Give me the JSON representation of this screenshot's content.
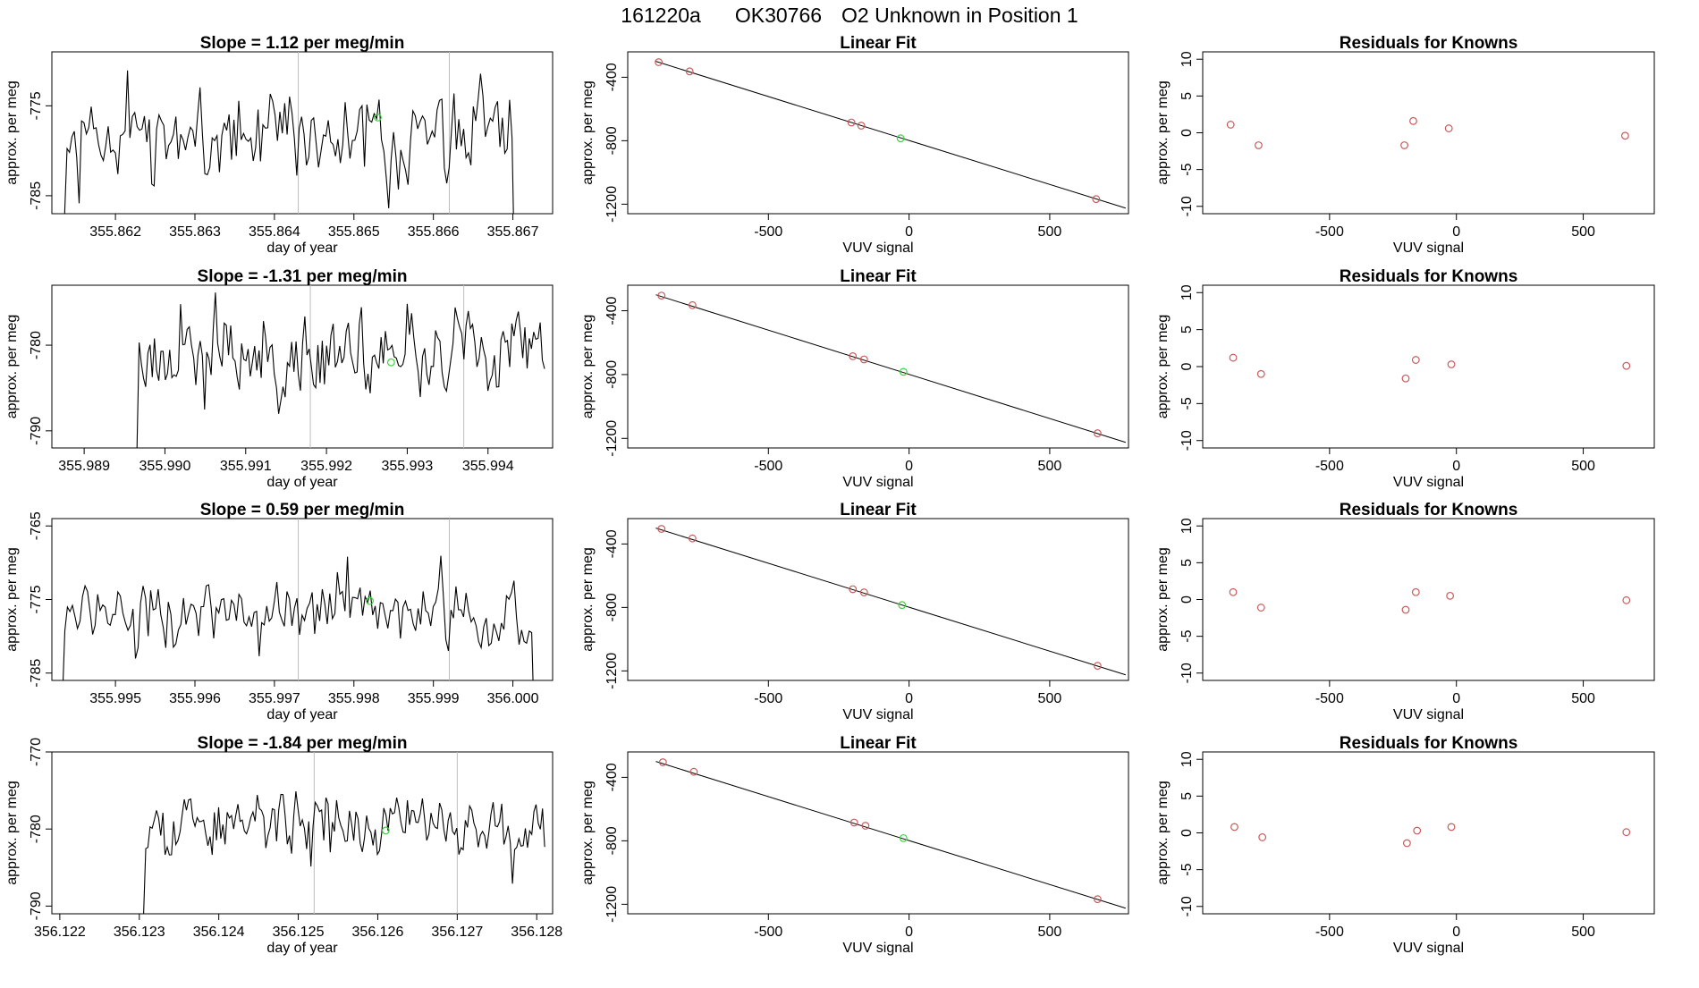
{
  "title": {
    "run": "161220a",
    "tank": "OK30766",
    "desc": "O2 Unknown in Position  1"
  },
  "chart_data": [
    {
      "type": "line",
      "title": "Slope =  1.12  per meg/min",
      "xlabel": "day of year",
      "ylabel": "approx. per meg",
      "xlim": [
        355.8612,
        355.8675
      ],
      "ylim": [
        -787,
        -769
      ],
      "xticks": [
        "355.862",
        "355.863",
        "355.864",
        "355.865",
        "355.866",
        "355.867"
      ],
      "yticks": [
        "-775",
        "-785"
      ],
      "vlines": [
        355.8643,
        355.8662
      ],
      "marker": {
        "x": 355.8653,
        "y": -776.3
      },
      "series": {
        "start": 355.8613,
        "end": 355.86705,
        "base": -778.5,
        "amp": 4,
        "seed": 11,
        "dropStart": 3,
        "dropEnd": 2
      }
    },
    {
      "type": "scatter",
      "title": "Linear Fit",
      "xlabel": "VUV signal",
      "ylabel": "approx. per meg",
      "xlim": [
        -1000,
        780
      ],
      "ylim": [
        -1260,
        -240
      ],
      "xticks": [
        "-500",
        "0",
        "500"
      ],
      "yticks": [
        "-400",
        "-800",
        "-1200"
      ],
      "fit": {
        "x": [
          -900,
          770
        ],
        "y": [
          -300,
          -1225
        ]
      },
      "points": [
        {
          "x": -890,
          "y": -305
        },
        {
          "x": -780,
          "y": -363
        },
        {
          "x": -205,
          "y": -685
        },
        {
          "x": -170,
          "y": -705
        },
        {
          "x": 665,
          "y": -1168
        }
      ],
      "unknown": [
        {
          "x": -30,
          "y": -785
        }
      ]
    },
    {
      "type": "scatter",
      "title": "Residuals for Knowns",
      "xlabel": "VUV signal",
      "ylabel": "approx. per meg",
      "xlim": [
        -1000,
        780
      ],
      "ylim": [
        -11,
        11
      ],
      "xticks": [
        "-500",
        "0",
        "500"
      ],
      "yticks": [
        "10",
        "5",
        "0",
        "-5",
        "-10"
      ],
      "points": [
        {
          "x": -890,
          "y": 1.1
        },
        {
          "x": -780,
          "y": -1.7
        },
        {
          "x": -205,
          "y": -1.7
        },
        {
          "x": -170,
          "y": 1.6
        },
        {
          "x": -30,
          "y": 0.6
        },
        {
          "x": 665,
          "y": -0.4
        }
      ]
    },
    {
      "type": "line",
      "title": "Slope =  -1.31  per meg/min",
      "xlabel": "day of year",
      "ylabel": "approx. per meg",
      "xlim": [
        355.9886,
        355.9948
      ],
      "ylim": [
        -792,
        -773
      ],
      "xticks": [
        "355.989",
        "355.990",
        "355.991",
        "355.992",
        "355.993",
        "355.994"
      ],
      "yticks": [
        "-780",
        "-790"
      ],
      "vlines": [
        355.9918,
        355.9937
      ],
      "marker": {
        "x": 355.9928,
        "y": -782
      },
      "series": {
        "start": 355.9896,
        "end": 355.9947,
        "base": -781,
        "amp": 4,
        "seed": 23,
        "dropStart": 3,
        "dropEnd": 0
      }
    },
    {
      "type": "scatter",
      "title": "Linear Fit",
      "xlabel": "VUV signal",
      "ylabel": "approx. per meg",
      "xlim": [
        -1000,
        780
      ],
      "ylim": [
        -1260,
        -240
      ],
      "xticks": [
        "-500",
        "0",
        "500"
      ],
      "yticks": [
        "-400",
        "-800",
        "-1200"
      ],
      "fit": {
        "x": [
          -900,
          770
        ],
        "y": [
          -300,
          -1225
        ]
      },
      "points": [
        {
          "x": -880,
          "y": -305
        },
        {
          "x": -770,
          "y": -365
        },
        {
          "x": -200,
          "y": -685
        },
        {
          "x": -160,
          "y": -705
        },
        {
          "x": 670,
          "y": -1168
        }
      ],
      "unknown": [
        {
          "x": -20,
          "y": -783
        }
      ]
    },
    {
      "type": "scatter",
      "title": "Residuals for Knowns",
      "xlabel": "VUV signal",
      "ylabel": "approx. per meg",
      "xlim": [
        -1000,
        780
      ],
      "ylim": [
        -11,
        11
      ],
      "xticks": [
        "-500",
        "0",
        "500"
      ],
      "yticks": [
        "10",
        "5",
        "0",
        "-5",
        "-10"
      ],
      "points": [
        {
          "x": -880,
          "y": 1.2
        },
        {
          "x": -770,
          "y": -1.0
        },
        {
          "x": -200,
          "y": -1.6
        },
        {
          "x": -160,
          "y": 0.9
        },
        {
          "x": -20,
          "y": 0.3
        },
        {
          "x": 670,
          "y": 0.1
        }
      ]
    },
    {
      "type": "line",
      "title": "Slope =  0.59  per meg/min",
      "xlabel": "day of year",
      "ylabel": "approx. per meg",
      "xlim": [
        355.9942,
        356.0005
      ],
      "ylim": [
        -786,
        -764
      ],
      "xticks": [
        "355.995",
        "355.996",
        "355.997",
        "355.998",
        "355.999",
        "356.000"
      ],
      "yticks": [
        "-765",
        "-775",
        "-785"
      ],
      "vlines": [
        355.9973,
        355.9992
      ],
      "marker": {
        "x": 355.9982,
        "y": -775.2
      },
      "series": {
        "start": 355.9943,
        "end": 356.0003,
        "base": -777,
        "amp": 4,
        "seed": 37,
        "dropStart": 2,
        "dropEnd": 2
      }
    },
    {
      "type": "scatter",
      "title": "Linear Fit",
      "xlabel": "VUV signal",
      "ylabel": "approx. per meg",
      "xlim": [
        -1000,
        780
      ],
      "ylim": [
        -1260,
        -240
      ],
      "xticks": [
        "-500",
        "0",
        "500"
      ],
      "yticks": [
        "-400",
        "-800",
        "-1200"
      ],
      "fit": {
        "x": [
          -900,
          770
        ],
        "y": [
          -300,
          -1225
        ]
      },
      "points": [
        {
          "x": -880,
          "y": -305
        },
        {
          "x": -770,
          "y": -365
        },
        {
          "x": -200,
          "y": -685
        },
        {
          "x": -160,
          "y": -705
        },
        {
          "x": 670,
          "y": -1168
        }
      ],
      "unknown": [
        {
          "x": -25,
          "y": -785
        }
      ]
    },
    {
      "type": "scatter",
      "title": "Residuals for Knowns",
      "xlabel": "VUV signal",
      "ylabel": "approx. per meg",
      "xlim": [
        -1000,
        780
      ],
      "ylim": [
        -11,
        11
      ],
      "xticks": [
        "-500",
        "0",
        "500"
      ],
      "yticks": [
        "10",
        "5",
        "0",
        "-5",
        "-10"
      ],
      "points": [
        {
          "x": -880,
          "y": 1.0
        },
        {
          "x": -770,
          "y": -1.1
        },
        {
          "x": -200,
          "y": -1.4
        },
        {
          "x": -160,
          "y": 1.0
        },
        {
          "x": -25,
          "y": 0.5
        },
        {
          "x": 670,
          "y": -0.1
        }
      ]
    },
    {
      "type": "line",
      "title": "Slope =  -1.84  per meg/min",
      "xlabel": "day of year",
      "ylabel": "approx. per meg",
      "xlim": [
        356.1219,
        356.1282
      ],
      "ylim": [
        -791,
        -770
      ],
      "xticks": [
        "356.122",
        "356.123",
        "356.124",
        "356.125",
        "356.126",
        "356.127",
        "356.128"
      ],
      "yticks": [
        "-770",
        "-780",
        "-790"
      ],
      "vlines": [
        356.1252,
        356.127
      ],
      "marker": {
        "x": 356.1261,
        "y": -780.2
      },
      "series": {
        "start": 356.123,
        "end": 356.1281,
        "base": -779.5,
        "amp": 3.5,
        "seed": 53,
        "dropStart": 3,
        "dropEnd": 0
      }
    },
    {
      "type": "scatter",
      "title": "Linear Fit",
      "xlabel": "VUV signal",
      "ylabel": "approx. per meg",
      "xlim": [
        -1000,
        780
      ],
      "ylim": [
        -1260,
        -240
      ],
      "xticks": [
        "-500",
        "0",
        "500"
      ],
      "yticks": [
        "-400",
        "-800",
        "-1200"
      ],
      "fit": {
        "x": [
          -900,
          770
        ],
        "y": [
          -300,
          -1225
        ]
      },
      "points": [
        {
          "x": -875,
          "y": -305
        },
        {
          "x": -765,
          "y": -365
        },
        {
          "x": -195,
          "y": -685
        },
        {
          "x": -155,
          "y": -705
        },
        {
          "x": 670,
          "y": -1168
        }
      ],
      "unknown": [
        {
          "x": -20,
          "y": -783
        }
      ]
    },
    {
      "type": "scatter",
      "title": "Residuals for Knowns",
      "xlabel": "VUV signal",
      "ylabel": "approx. per meg",
      "xlim": [
        -1000,
        780
      ],
      "ylim": [
        -11,
        11
      ],
      "xticks": [
        "-500",
        "0",
        "500"
      ],
      "yticks": [
        "10",
        "5",
        "0",
        "-5",
        "-10"
      ],
      "points": [
        {
          "x": -875,
          "y": 0.8
        },
        {
          "x": -765,
          "y": -0.6
        },
        {
          "x": -195,
          "y": -1.4
        },
        {
          "x": -155,
          "y": 0.3
        },
        {
          "x": -20,
          "y": 0.8
        },
        {
          "x": 670,
          "y": 0.1
        }
      ]
    }
  ]
}
